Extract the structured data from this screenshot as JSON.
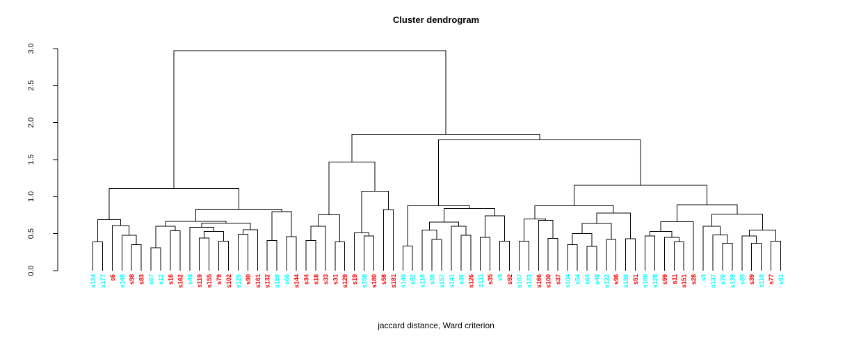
{
  "title": "Cluster dendrogram",
  "subtitle": "jaccard distance, Ward criterion",
  "y_axis": {
    "ticks": [
      "0.0",
      "0.5",
      "1.0",
      "1.5",
      "2.0",
      "2.5",
      "3.0"
    ],
    "min": 0,
    "max": 3
  },
  "colors": {
    "cluster_a": "#00FFFF",
    "cluster_b": "#FF0000",
    "line": "#000000",
    "background": "#FFFFFF"
  },
  "chart_data": {
    "type": "dendrogram",
    "orientation": "vertical",
    "ylim": [
      0,
      3
    ],
    "root_height": 2.97,
    "leaves": [
      {
        "label": "s124",
        "color": "#00FFFF"
      },
      {
        "label": "s177",
        "color": "#00FFFF"
      },
      {
        "label": "s6",
        "color": "#FF0000"
      },
      {
        "label": "s148",
        "color": "#00FFFF"
      },
      {
        "label": "s98",
        "color": "#FF0000"
      },
      {
        "label": "s83",
        "color": "#FF0000"
      },
      {
        "label": "s67",
        "color": "#00FFFF"
      },
      {
        "label": "s12",
        "color": "#00FFFF"
      },
      {
        "label": "s16",
        "color": "#FF0000"
      },
      {
        "label": "s162",
        "color": "#FF0000"
      },
      {
        "label": "s49",
        "color": "#00FFFF"
      },
      {
        "label": "s119",
        "color": "#FF0000"
      },
      {
        "label": "s155",
        "color": "#FF0000"
      },
      {
        "label": "s79",
        "color": "#FF0000"
      },
      {
        "label": "s102",
        "color": "#FF0000"
      },
      {
        "label": "s125",
        "color": "#00FFFF"
      },
      {
        "label": "s90",
        "color": "#FF0000"
      },
      {
        "label": "s161",
        "color": "#FF0000"
      },
      {
        "label": "s132",
        "color": "#FF0000"
      },
      {
        "label": "s159",
        "color": "#00FFFF"
      },
      {
        "label": "s66",
        "color": "#00FFFF"
      },
      {
        "label": "s144",
        "color": "#FF0000"
      },
      {
        "label": "s34",
        "color": "#FF0000"
      },
      {
        "label": "s18",
        "color": "#FF0000"
      },
      {
        "label": "s33",
        "color": "#FF0000"
      },
      {
        "label": "s31",
        "color": "#FF0000"
      },
      {
        "label": "s129",
        "color": "#FF0000"
      },
      {
        "label": "s19",
        "color": "#FF0000"
      },
      {
        "label": "s158",
        "color": "#00FFFF"
      },
      {
        "label": "s180",
        "color": "#FF0000"
      },
      {
        "label": "s58",
        "color": "#FF0000"
      },
      {
        "label": "s181",
        "color": "#FF0000"
      },
      {
        "label": "s140",
        "color": "#00FFFF"
      },
      {
        "label": "s52",
        "color": "#00FFFF"
      },
      {
        "label": "s110",
        "color": "#00FFFF"
      },
      {
        "label": "s30",
        "color": "#00FFFF"
      },
      {
        "label": "s157",
        "color": "#00FFFF"
      },
      {
        "label": "s141",
        "color": "#00FFFF"
      },
      {
        "label": "s36",
        "color": "#00FFFF"
      },
      {
        "label": "s126",
        "color": "#FF0000"
      },
      {
        "label": "s111",
        "color": "#00FFFF"
      },
      {
        "label": "s35",
        "color": "#FF0000"
      },
      {
        "label": "s9",
        "color": "#00FFFF"
      },
      {
        "label": "s92",
        "color": "#FF0000"
      },
      {
        "label": "s107",
        "color": "#00FFFF"
      },
      {
        "label": "s123",
        "color": "#00FFFF"
      },
      {
        "label": "s166",
        "color": "#FF0000"
      },
      {
        "label": "s100",
        "color": "#FF0000"
      },
      {
        "label": "s37",
        "color": "#FF0000"
      },
      {
        "label": "s104",
        "color": "#00FFFF"
      },
      {
        "label": "s54",
        "color": "#00FFFF"
      },
      {
        "label": "s64",
        "color": "#00FFFF"
      },
      {
        "label": "s40",
        "color": "#00FFFF"
      },
      {
        "label": "s122",
        "color": "#00FFFF"
      },
      {
        "label": "s96",
        "color": "#FF0000"
      },
      {
        "label": "s130",
        "color": "#00FFFF"
      },
      {
        "label": "s51",
        "color": "#FF0000"
      },
      {
        "label": "s188",
        "color": "#00FFFF"
      },
      {
        "label": "s128",
        "color": "#00FFFF"
      },
      {
        "label": "s99",
        "color": "#FF0000"
      },
      {
        "label": "s11",
        "color": "#FF0000"
      },
      {
        "label": "s151",
        "color": "#FF0000"
      },
      {
        "label": "s28",
        "color": "#FF0000"
      },
      {
        "label": "s3",
        "color": "#00FFFF"
      },
      {
        "label": "s137",
        "color": "#00FFFF"
      },
      {
        "label": "s70",
        "color": "#00FFFF"
      },
      {
        "label": "s139",
        "color": "#00FFFF"
      },
      {
        "label": "s85",
        "color": "#00FFFF"
      },
      {
        "label": "s39",
        "color": "#FF0000"
      },
      {
        "label": "s118",
        "color": "#00FFFF"
      },
      {
        "label": "s77",
        "color": "#FF0000"
      },
      {
        "label": "s91",
        "color": "#00FFFF"
      }
    ],
    "tree": {
      "h": 2.97,
      "c": [
        {
          "h": 1.11,
          "c": [
            {
              "h": 0.69,
              "c": [
                {
                  "h": 0.39,
                  "c": [
                    0,
                    1
                  ]
                },
                {
                  "h": 0.61,
                  "c": [
                    2,
                    {
                      "h": 0.48,
                      "c": [
                        3,
                        {
                          "h": 0.35,
                          "c": [
                            4,
                            5
                          ]
                        }
                      ]
                    }
                  ]
                }
              ]
            },
            {
              "h": 0.83,
              "c": [
                {
                  "h": 0.665,
                  "c": [
                    {
                      "h": 0.6,
                      "c": [
                        {
                          "h": 0.31,
                          "c": [
                            6,
                            7
                          ]
                        },
                        {
                          "h": 0.54,
                          "c": [
                            8,
                            9
                          ]
                        }
                      ]
                    },
                    {
                      "h": 0.64,
                      "c": [
                        {
                          "h": 0.585,
                          "c": [
                            10,
                            {
                              "h": 0.53,
                              "c": [
                                {
                                  "h": 0.44,
                                  "c": [
                                    11,
                                    12
                                  ]
                                },
                                {
                                  "h": 0.4,
                                  "c": [
                                    13,
                                    14
                                  ]
                                }
                              ]
                            }
                          ]
                        },
                        {
                          "h": 0.555,
                          "c": [
                            {
                              "h": 0.49,
                              "c": [
                                15,
                                16
                              ]
                            },
                            17
                          ]
                        }
                      ]
                    }
                  ]
                },
                {
                  "h": 0.795,
                  "c": [
                    {
                      "h": 0.41,
                      "c": [
                        18,
                        19
                      ]
                    },
                    {
                      "h": 0.46,
                      "c": [
                        20,
                        21
                      ]
                    }
                  ]
                }
              ]
            }
          ]
        },
        {
          "h": 1.843,
          "c": [
            {
              "h": 1.466,
              "c": [
                {
                  "h": 0.755,
                  "c": [
                    {
                      "h": 0.6,
                      "c": [
                        {
                          "h": 0.41,
                          "c": [
                            22,
                            23
                          ]
                        },
                        24
                      ]
                    },
                    {
                      "h": 0.39,
                      "c": [
                        25,
                        26
                      ]
                    }
                  ]
                },
                {
                  "h": 1.073,
                  "c": [
                    {
                      "h": 0.51,
                      "c": [
                        27,
                        {
                          "h": 0.47,
                          "c": [
                            28,
                            29
                          ]
                        }
                      ]
                    },
                    {
                      "h": 0.825,
                      "c": [
                        30,
                        31
                      ]
                    }
                  ]
                }
              ]
            },
            {
              "h": 1.767,
              "c": [
                {
                  "h": 0.877,
                  "c": [
                    {
                      "h": 0.333,
                      "c": [
                        32,
                        33
                      ]
                    },
                    {
                      "h": 0.837,
                      "c": [
                        {
                          "h": 0.655,
                          "c": [
                            {
                              "h": 0.55,
                              "c": [
                                34,
                                {
                                  "h": 0.42,
                                  "c": [
                                    35,
                                    36
                                  ]
                                }
                              ]
                            },
                            {
                              "h": 0.6,
                              "c": [
                                37,
                                {
                                  "h": 0.48,
                                  "c": [
                                    38,
                                    39
                                  ]
                                }
                              ]
                            }
                          ]
                        },
                        {
                          "h": 0.74,
                          "c": [
                            {
                              "h": 0.45,
                              "c": [
                                40,
                                41
                              ]
                            },
                            {
                              "h": 0.4,
                              "c": [
                                42,
                                43
                              ]
                            }
                          ]
                        }
                      ]
                    }
                  ]
                },
                {
                  "h": 1.155,
                  "c": [
                    {
                      "h": 0.877,
                      "c": [
                        {
                          "h": 0.7,
                          "c": [
                            {
                              "h": 0.4,
                              "c": [
                                44,
                                45
                              ]
                            },
                            {
                              "h": 0.68,
                              "c": [
                                46,
                                {
                                  "h": 0.435,
                                  "c": [
                                    47,
                                    48
                                  ]
                                }
                              ]
                            }
                          ]
                        },
                        {
                          "h": 0.777,
                          "c": [
                            {
                              "h": 0.635,
                              "c": [
                                {
                                  "h": 0.5,
                                  "c": [
                                    {
                                      "h": 0.35,
                                      "c": [
                                        49,
                                        50
                                      ]
                                    },
                                    {
                                      "h": 0.33,
                                      "c": [
                                        51,
                                        52
                                      ]
                                    }
                                  ]
                                },
                                {
                                  "h": 0.42,
                                  "c": [
                                    53,
                                    54
                                  ]
                                }
                              ]
                            },
                            {
                              "h": 0.43,
                              "c": [
                                55,
                                56
                              ]
                            }
                          ]
                        }
                      ]
                    },
                    {
                      "h": 0.89,
                      "c": [
                        {
                          "h": 0.66,
                          "c": [
                            {
                              "h": 0.53,
                              "c": [
                                {
                                  "h": 0.47,
                                  "c": [
                                    57,
                                    58
                                  ]
                                },
                                {
                                  "h": 0.45,
                                  "c": [
                                    59,
                                    {
                                      "h": 0.39,
                                      "c": [
                                        60,
                                        61
                                      ]
                                    }
                                  ]
                                }
                              ]
                            },
                            62
                          ]
                        },
                        {
                          "h": 0.764,
                          "c": [
                            {
                              "h": 0.6,
                              "c": [
                                63,
                                {
                                  "h": 0.483,
                                  "c": [
                                    64,
                                    {
                                      "h": 0.37,
                                      "c": [
                                        65,
                                        66
                                      ]
                                    }
                                  ]
                                }
                              ]
                            },
                            {
                              "h": 0.55,
                              "c": [
                                {
                                  "h": 0.47,
                                  "c": [
                                    67,
                                    {
                                      "h": 0.37,
                                      "c": [
                                        68,
                                        69
                                      ]
                                    }
                                  ]
                                },
                                {
                                  "h": 0.4,
                                  "c": [
                                    70,
                                    71
                                  ]
                                }
                              ]
                            }
                          ]
                        }
                      ]
                    }
                  ]
                }
              ]
            }
          ]
        }
      ]
    }
  }
}
